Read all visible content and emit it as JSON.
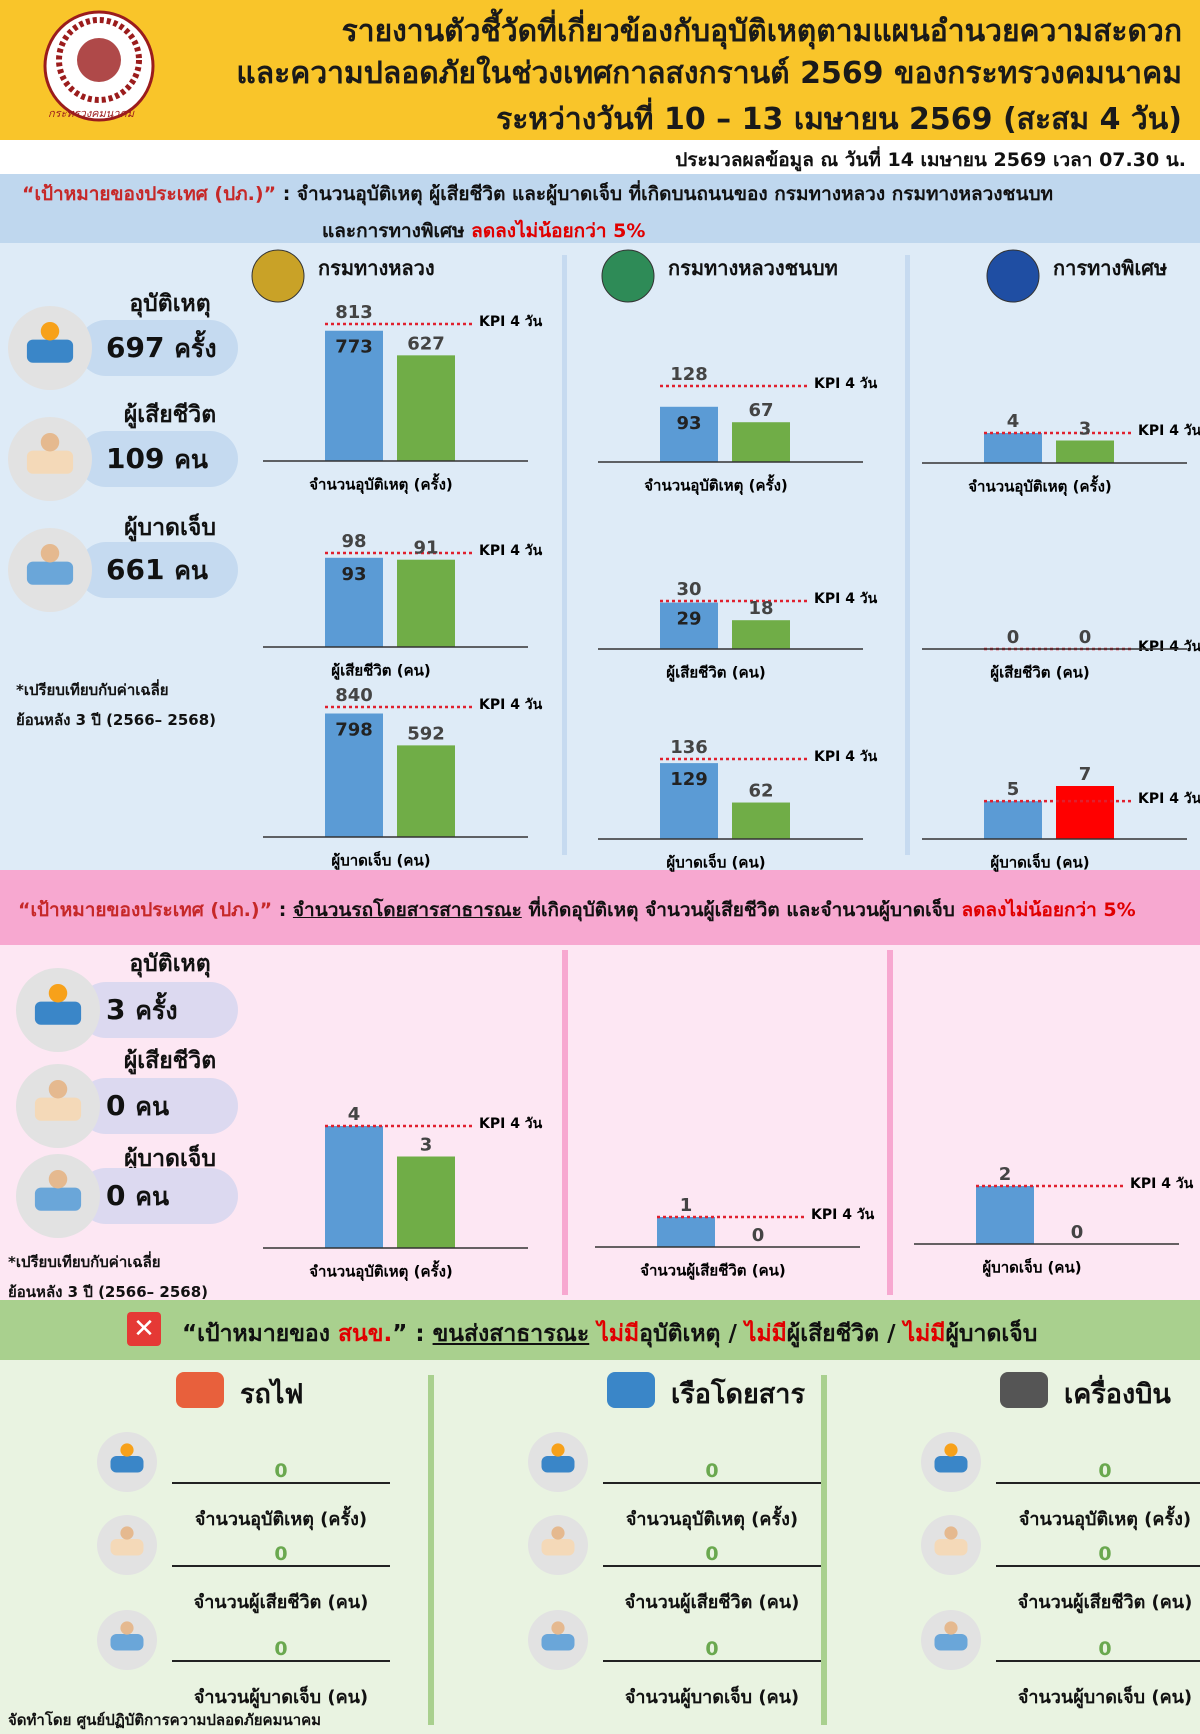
{
  "header": {
    "org": "กระทรวงคมนาคม",
    "title": [
      "รายงานตัวชี้วัดที่เกี่ยวข้องกับอุบัติเหตุตามแผนอำนวยความสะดวก",
      "และความปลอดภัยในช่วงเทศกาลสงกรานต์ 2569 ของกระทรวงคมนาคม",
      "ระหว่างวันที่ 10 – 13 เมษายน 2569 (สะสม 4 วัน)"
    ],
    "note": "ประมวลผลข้อมูล ณ วันที่ 14 เมษายน 2569 เวลา 07.30 น."
  },
  "roads": {
    "goal": {
      "label": "“เป้าหมายของประเทศ (ปภ.)”",
      "colon": ":",
      "line1": "จำนวนอุบัติเหตุ ผู้เสียชีวิต และผู้บาดเจ็บ ที่เกิดบนถนนของ กรมทางหลวง กรมทางหลวงชนบท",
      "line2": "และการทางพิเศษ",
      "highlight": "ลดลงไม่น้อยกว่า 5%"
    },
    "summary": [
      {
        "label": "อุบัติเหตุ",
        "value": 697,
        "unit": "ครั้ง"
      },
      {
        "label": "ผู้เสียชีวิต",
        "value": 109,
        "unit": "คน"
      },
      {
        "label": "ผู้บาดเจ็บ",
        "value": 661,
        "unit": "คน"
      }
    ],
    "footnote": [
      "*เปรียบเทียบกับค่าเฉลี่ย",
      "ย้อนหลัง 3 ปี (2566– 2568)"
    ],
    "kpi_label": "KPI 4 วัน",
    "bar_color": "#5b9bd5",
    "kpi_color": "#e0202e",
    "agencies": [
      {
        "name": "กรมทางหลวง",
        "charts": [
          {
            "xlabel": "จำนวนอุบัติเหตุ (ครั้ง)",
            "kpi": 813,
            "baseline": 773,
            "actual": 627,
            "actual_color": "#70ad47"
          },
          {
            "xlabel": "ผู้เสียชีวิต (คน)",
            "kpi": 98,
            "baseline": 93,
            "actual": 91,
            "actual_color": "#70ad47"
          },
          {
            "xlabel": "ผู้บาดเจ็บ (คน)",
            "kpi": 840,
            "baseline": 798,
            "actual": 592,
            "actual_color": "#70ad47"
          }
        ]
      },
      {
        "name": "กรมทางหลวงชนบท",
        "charts": [
          {
            "xlabel": "จำนวนอุบัติเหตุ (ครั้ง)",
            "kpi": 128,
            "baseline": 93,
            "actual": 67,
            "actual_color": "#70ad47"
          },
          {
            "xlabel": "ผู้เสียชีวิต (คน)",
            "kpi": 30,
            "baseline": 29,
            "actual": 18,
            "actual_color": "#70ad47"
          },
          {
            "xlabel": "ผู้บาดเจ็บ (คน)",
            "kpi": 136,
            "baseline": 129,
            "actual": 62,
            "actual_color": "#70ad47"
          }
        ]
      },
      {
        "name": "การทางพิเศษ",
        "charts": [
          {
            "xlabel": "จำนวนอุบัติเหตุ (ครั้ง)",
            "kpi": 4,
            "actual": 3,
            "actual_color": "#70ad47"
          },
          {
            "xlabel": "ผู้เสียชีวิต (คน)",
            "kpi": 0,
            "actual": 0,
            "actual_color": "#70ad47"
          },
          {
            "xlabel": "ผู้บาดเจ็บ (คน)",
            "kpi": 5,
            "actual": 7,
            "actual_color": "#ff0000"
          }
        ]
      }
    ]
  },
  "public": {
    "goal": {
      "label": "“เป้าหมายของประเทศ (ปภ.)”",
      "colon": ":",
      "underline": "จำนวนรถโดยสารสาธารณะ",
      "text": "ที่เกิดอุบัติเหตุ จำนวนผู้เสียชีวิต และจำนวนผู้บาดเจ็บ",
      "highlight": "ลดลงไม่น้อยกว่า 5%"
    },
    "summary": [
      {
        "label": "อุบัติเหตุ",
        "value": 3,
        "unit": "ครั้ง"
      },
      {
        "label": "ผู้เสียชีวิต",
        "value": 0,
        "unit": "คน"
      },
      {
        "label": "ผู้บาดเจ็บ",
        "value": 0,
        "unit": "คน"
      }
    ],
    "footnote": [
      "*เปรียบเทียบกับค่าเฉลี่ย",
      "ย้อนหลัง 3 ปี (2566– 2568)"
    ],
    "kpi_label": "KPI 4 วัน",
    "bar_color": "#5b9bd5",
    "kpi_color": "#e0202e",
    "charts": [
      {
        "xlabel": "จำนวนอุบัติเหตุ (ครั้ง)",
        "kpi": 4,
        "actual": 3,
        "actual_color": "#70ad47"
      },
      {
        "xlabel": "จำนวนผู้เสียชีวิต (คน)",
        "kpi": 1,
        "actual": 0,
        "actual_color": "#70ad47"
      },
      {
        "xlabel": "ผู้บาดเจ็บ (คน)",
        "kpi": 2,
        "actual": 0,
        "actual_color": "#70ad47"
      }
    ]
  },
  "otp": {
    "goal": {
      "pre": "“เป้าหมายของ",
      "org": "สนข.",
      "post": "” :",
      "underline": "ขนส่งสาธารณะ",
      "no": "ไม่มี",
      "items": [
        "อุบัติเหตุ",
        "ผู้เสียชีวิต",
        "ผู้บาดเจ็บ"
      ],
      "separator": "/"
    },
    "modes": [
      {
        "name": "รถไฟ",
        "rows": [
          {
            "label": "จำนวนอุบัติเหตุ (ครั้ง)",
            "value": 0
          },
          {
            "label": "จำนวนผู้เสียชีวิต (คน)",
            "value": 0
          },
          {
            "label": "จำนวนผู้บาดเจ็บ (คน)",
            "value": 0
          }
        ]
      },
      {
        "name": "เรือโดยสาร",
        "rows": [
          {
            "label": "จำนวนอุบัติเหตุ (ครั้ง)",
            "value": 0
          },
          {
            "label": "จำนวนผู้เสียชีวิต (คน)",
            "value": 0
          },
          {
            "label": "จำนวนผู้บาดเจ็บ (คน)",
            "value": 0
          }
        ]
      },
      {
        "name": "เครื่องบิน",
        "rows": [
          {
            "label": "จำนวนอุบัติเหตุ (ครั้ง)",
            "value": 0
          },
          {
            "label": "จำนวนผู้เสียชีวิต (คน)",
            "value": 0
          },
          {
            "label": "จำนวนผู้บาดเจ็บ (คน)",
            "value": 0
          }
        ]
      }
    ]
  },
  "footer": "จัดทำโดย ศูนย์ปฏิบัติการความปลอดภัยคมนาคม"
}
